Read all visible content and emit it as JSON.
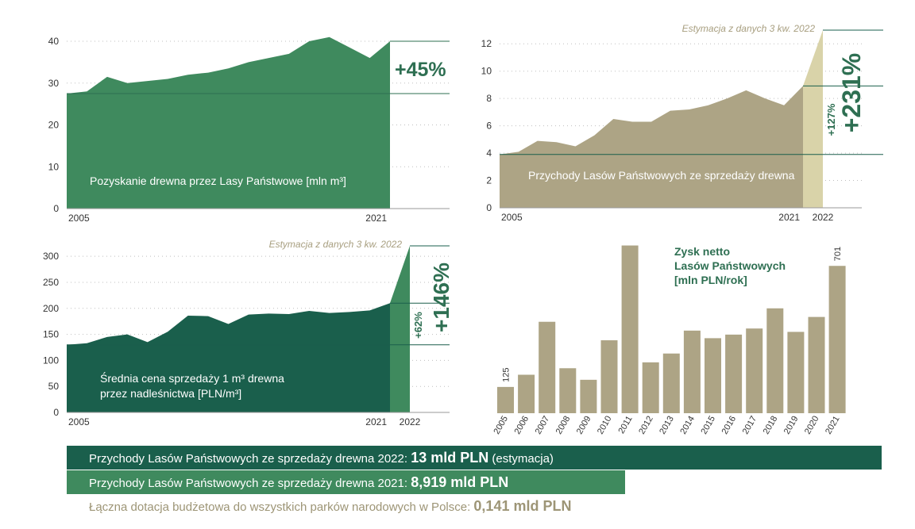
{
  "chart_data": [
    {
      "type": "area",
      "title": "Pozyskanie drewna przez Lasy Państwowe [mln m³]",
      "x": [
        2005,
        2006,
        2007,
        2008,
        2009,
        2010,
        2011,
        2012,
        2013,
        2014,
        2015,
        2016,
        2017,
        2018,
        2019,
        2020,
        2021
      ],
      "values": [
        27.5,
        28,
        31.5,
        30,
        30.5,
        31,
        32,
        32.5,
        33.5,
        35,
        36,
        37,
        40,
        41,
        38.5,
        36,
        40
      ],
      "ylim": [
        0,
        40
      ],
      "yticks": [
        0,
        10,
        20,
        30,
        40
      ],
      "xtick_labels": [
        "2005",
        "2021"
      ],
      "annotation": "+45%",
      "color": "#3f8a5e"
    },
    {
      "type": "area",
      "title": "Przychody Lasów Państwowych ze sprzedaży drewna",
      "x": [
        2005,
        2006,
        2007,
        2008,
        2009,
        2010,
        2011,
        2012,
        2013,
        2014,
        2015,
        2016,
        2017,
        2018,
        2019,
        2020,
        2021,
        2022
      ],
      "values": [
        3.9,
        4.1,
        4.9,
        4.8,
        4.5,
        5.3,
        6.5,
        6.3,
        6.3,
        7.1,
        7.2,
        7.5,
        8.0,
        8.6,
        8.0,
        7.5,
        8.919,
        13
      ],
      "ylim": [
        0,
        13
      ],
      "yticks": [
        0,
        2,
        4,
        6,
        8,
        10,
        12
      ],
      "xtick_labels": [
        "2005",
        "2021",
        "2022"
      ],
      "annotation": "+231%",
      "annotation_small": "+127%",
      "note": "Estymacja z danych 3 kw. 2022",
      "color": "#ada485",
      "color_estimate": "#d9d3a9"
    },
    {
      "type": "area",
      "title": "Średnia cena sprzedaży 1 m³ drewna przez nadleśnictwa [PLN/m³]",
      "title_lines": [
        "Średnia cena sprzedaży 1 m³ drewna",
        "przez nadleśnictwa [PLN/m³]"
      ],
      "x": [
        2005,
        2006,
        2007,
        2008,
        2009,
        2010,
        2011,
        2012,
        2013,
        2014,
        2015,
        2016,
        2017,
        2018,
        2019,
        2020,
        2021,
        2022
      ],
      "values": [
        130,
        133,
        145,
        150,
        135,
        155,
        186,
        185,
        170,
        188,
        190,
        189,
        195,
        191,
        193,
        196,
        210,
        320
      ],
      "ylim": [
        0,
        320
      ],
      "yticks": [
        0,
        50,
        100,
        150,
        200,
        250,
        300
      ],
      "xtick_labels": [
        "2005",
        "2021",
        "2022"
      ],
      "annotation": "+146%",
      "annotation_small": "+62%",
      "note": "Estymacja z danych 3 kw. 2022",
      "color": "#1a5f4c",
      "color_estimate": "#3f8a5e"
    },
    {
      "type": "bar",
      "title": "Zysk netto Lasów Państwowych [mln PLN/rok]",
      "title_lines": [
        "Zysk netto",
        "Lasów Państwowych",
        "[mln PLN/rok]"
      ],
      "categories": [
        "2005",
        "2006",
        "2007",
        "2008",
        "2009",
        "2010",
        "2011",
        "2012",
        "2013",
        "2014",
        "2015",
        "2016",
        "2017",
        "2018",
        "2019",
        "2020",
        "2021"
      ],
      "values": [
        125,
        183,
        435,
        214,
        159,
        347,
        798,
        242,
        284,
        393,
        357,
        374,
        403,
        499,
        387,
        458,
        701
      ],
      "data_labels": {
        "2005": "125",
        "2021": "701"
      },
      "ylim": [
        0,
        800
      ],
      "color": "#ada485"
    }
  ],
  "summary": [
    {
      "label": "Przychody Lasów Państwowych ze sprzedaży drewna 2022: ",
      "value": "13 mld PLN",
      "suffix": " (estymacja)"
    },
    {
      "label": "Przychody Lasów Państwowych ze sprzedaży drewna 2021: ",
      "value": "8,919 mld PLN",
      "suffix": ""
    },
    {
      "label": "Łączna dotacja budżetowa do wszystkich parków narodowych w Polsce: ",
      "value": "0,141 mld PLN",
      "suffix": ""
    }
  ]
}
